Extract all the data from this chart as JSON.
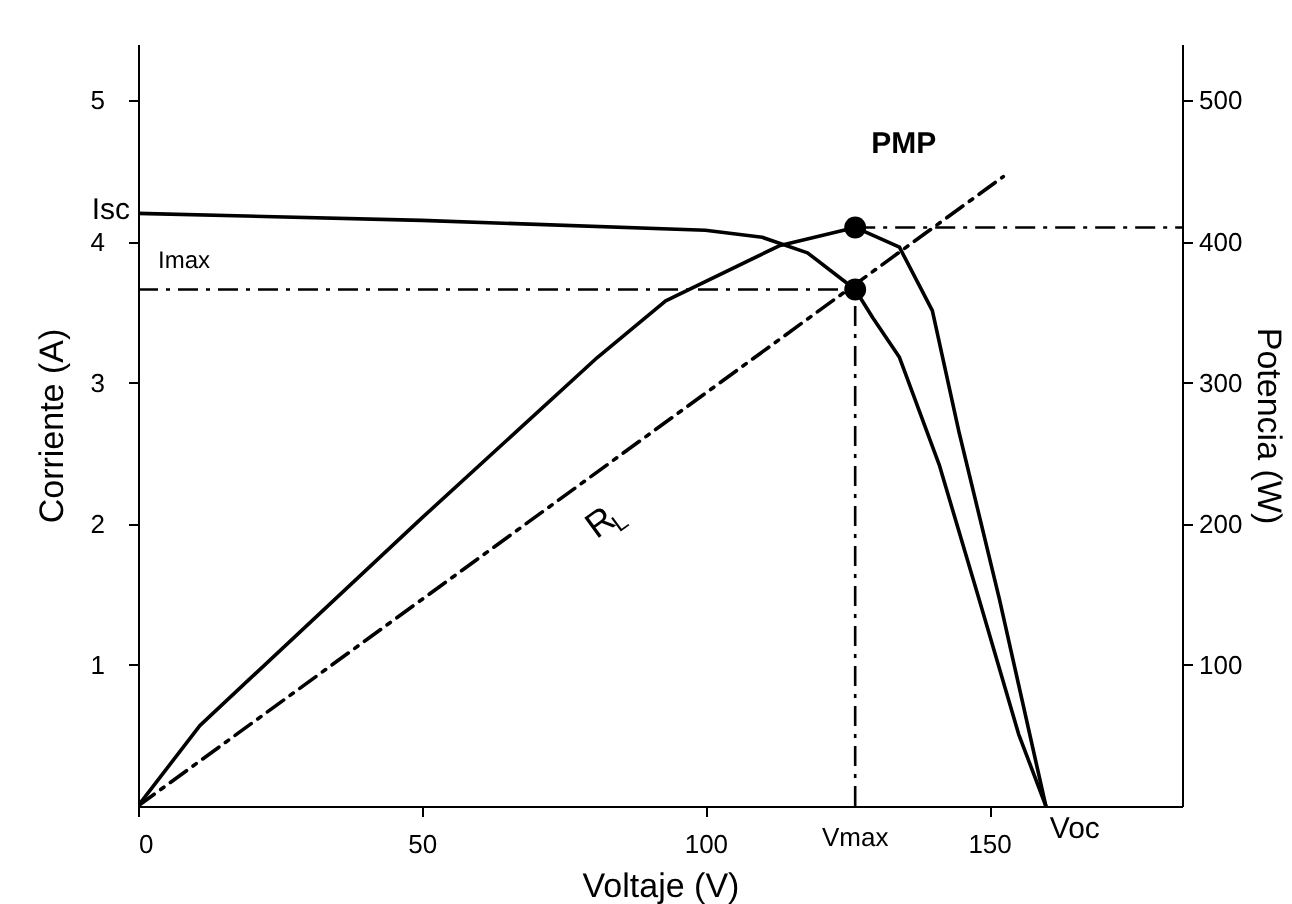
{
  "chart_data": {
    "type": "line",
    "xlabel": "Voltaje (V)",
    "ylabel": "Corriente (A)",
    "y2label": "Potencia (W)",
    "xlim": [
      0,
      184
    ],
    "xticks": [
      0,
      50,
      100,
      150
    ],
    "ylim": [
      0,
      5.4
    ],
    "yticks": [
      1,
      2,
      3,
      4,
      5
    ],
    "y2lim": [
      0,
      540
    ],
    "y2ticks": [
      100,
      200,
      300,
      400,
      500
    ],
    "series": [
      {
        "color": "#000000",
        "x": [
          0,
          50,
          100,
          110,
          118,
          126.4,
          129.5,
          134.2,
          141.2,
          148.2,
          155.2,
          160
        ],
        "values": [
          4.2,
          4.15,
          4.08,
          4.03,
          3.92,
          3.66,
          3.46,
          3.18,
          2.42,
          1.47,
          0.51,
          0
        ]
      },
      {
        "color": "#000000",
        "axis": "y2",
        "x": [
          0,
          10.9,
          50,
          81,
          93,
          113,
          126.4,
          134.2,
          140,
          144.7,
          151.8,
          160
        ],
        "values": [
          0,
          57,
          204,
          318,
          358,
          397,
          410,
          396,
          351,
          265,
          147,
          0
        ]
      },
      {
        "name": "R$_{L}$",
        "color": "#000000",
        "line_style": "dashed",
        "x": [
          0,
          152.5
        ],
        "values": [
          0,
          4.46
        ]
      },
      {
        "type": "scatter",
        "marker": "circle",
        "color": "#000000",
        "x": [
          126.4,
          126.4
        ],
        "values": [
          3.66,
          4.1
        ]
      }
    ],
    "ref_lines": [
      {
        "axis": "y",
        "value": 3.66,
        "label": "Imax",
        "line_style": "dashed"
      },
      {
        "axis": "y2",
        "value": 410,
        "line_style": "dashed"
      },
      {
        "axis": "x",
        "value": 126.4,
        "label": "Vmax",
        "line_style": "dashed"
      }
    ],
    "annotations": [
      {
        "text": "Isc",
        "x": 0,
        "y": 4.2
      },
      {
        "text": "Voc",
        "x": 160,
        "y": 0
      },
      {
        "text": "PMP",
        "x": 126.4,
        "y": 4.1
      }
    ],
    "grid": false
  }
}
